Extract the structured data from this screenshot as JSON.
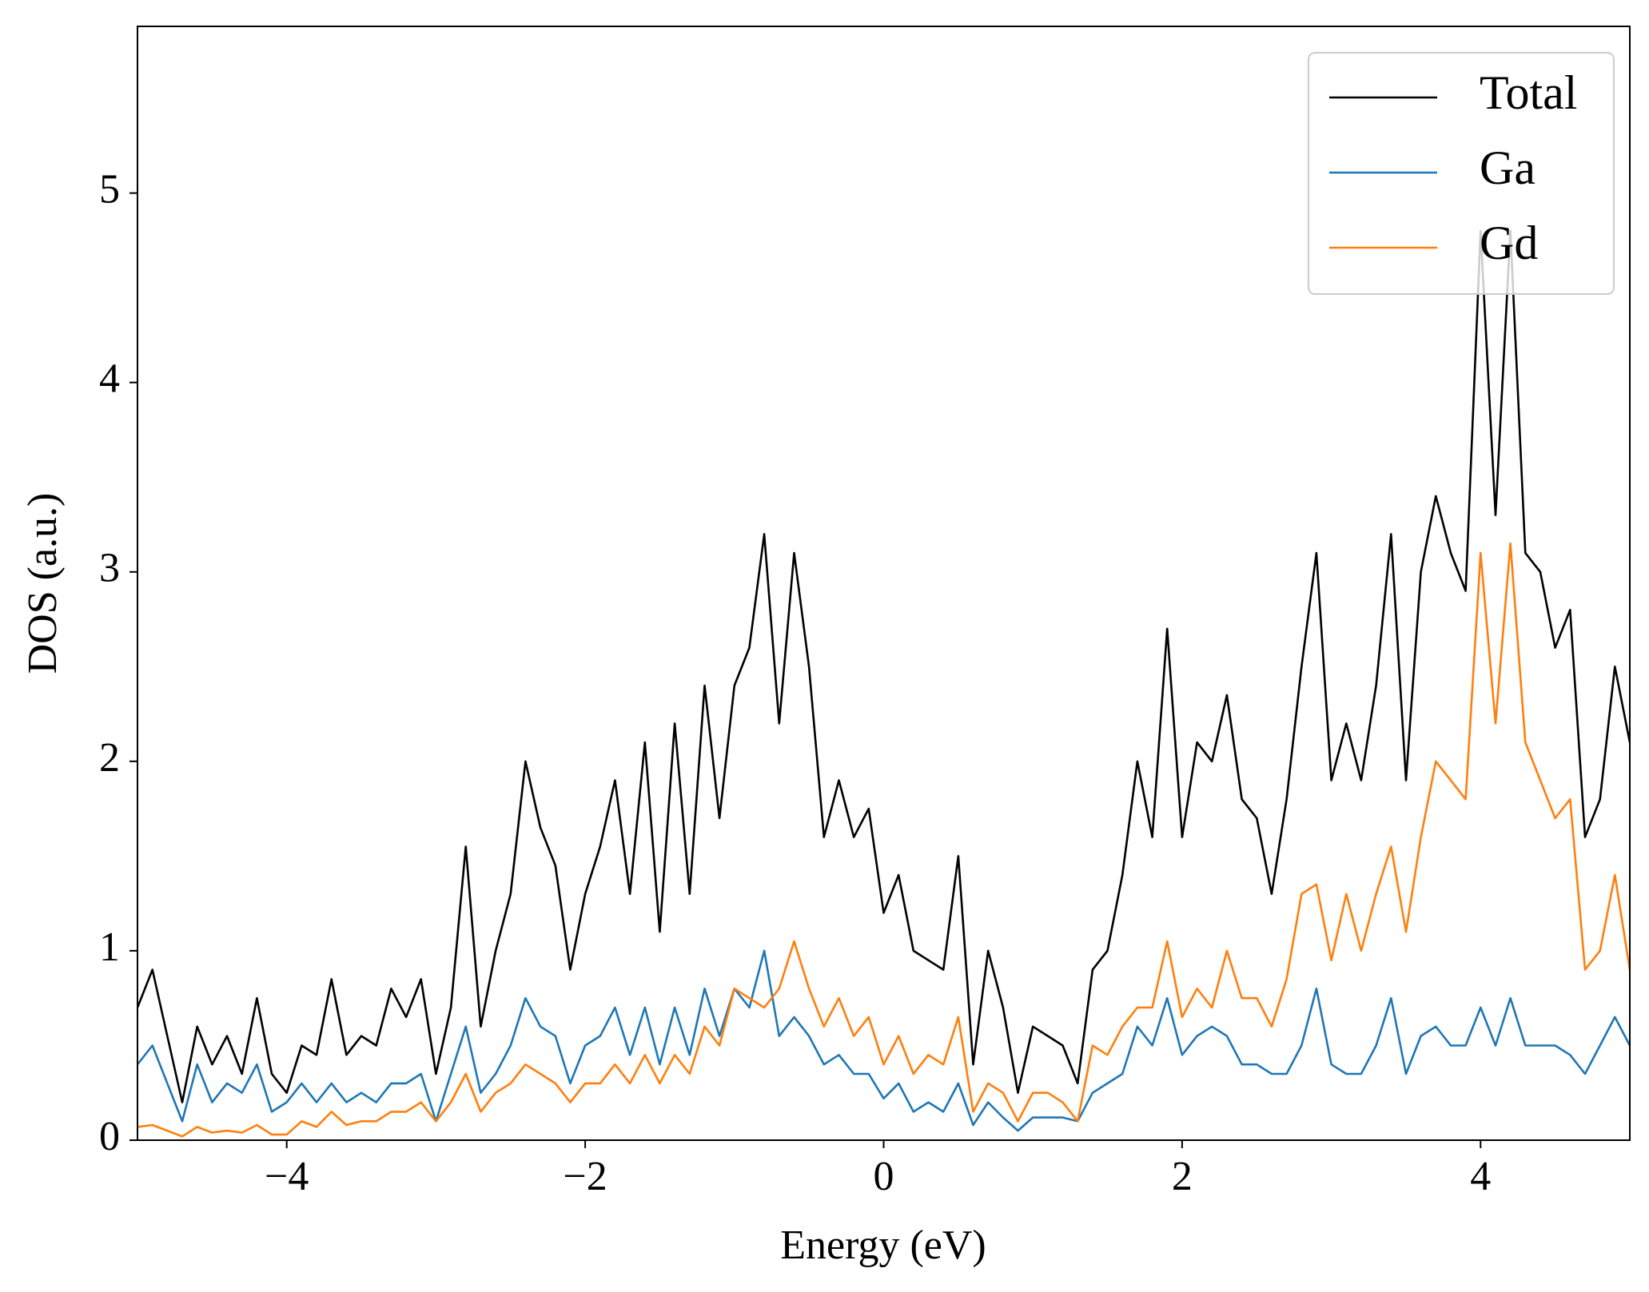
{
  "chart_data": {
    "type": "line",
    "xlabel": "Energy (eV)",
    "ylabel": "DOS (a.u.)",
    "x": [
      -5.0,
      -4.9,
      -4.8,
      -4.7,
      -4.6,
      -4.5,
      -4.4,
      -4.3,
      -4.2,
      -4.1,
      -4.0,
      -3.9,
      -3.8,
      -3.7,
      -3.6,
      -3.5,
      -3.4,
      -3.3,
      -3.2,
      -3.1,
      -3.0,
      -2.9,
      -2.8,
      -2.7,
      -2.6,
      -2.5,
      -2.4,
      -2.3,
      -2.2,
      -2.1,
      -2.0,
      -1.9,
      -1.8,
      -1.7,
      -1.6,
      -1.5,
      -1.4,
      -1.3,
      -1.2,
      -1.1,
      -1.0,
      -0.9,
      -0.8,
      -0.7,
      -0.6,
      -0.5,
      -0.4,
      -0.3,
      -0.2,
      -0.1,
      0.0,
      0.1,
      0.2,
      0.3,
      0.4,
      0.5,
      0.6,
      0.7,
      0.8,
      0.9,
      1.0,
      1.1,
      1.2,
      1.3,
      1.4,
      1.5,
      1.6,
      1.7,
      1.8,
      1.9,
      2.0,
      2.1,
      2.2,
      2.3,
      2.4,
      2.5,
      2.6,
      2.7,
      2.8,
      2.9,
      3.0,
      3.1,
      3.2,
      3.3,
      3.4,
      3.5,
      3.6,
      3.7,
      3.8,
      3.9,
      4.0,
      4.1,
      4.2,
      4.3,
      4.4,
      4.5,
      4.6,
      4.7,
      4.8,
      4.9,
      5.0
    ],
    "series": [
      {
        "name": "Total",
        "color": "#000000",
        "values": [
          0.7,
          0.9,
          0.55,
          0.2,
          0.6,
          0.4,
          0.55,
          0.35,
          0.75,
          0.35,
          0.25,
          0.5,
          0.45,
          0.85,
          0.45,
          0.55,
          0.5,
          0.8,
          0.65,
          0.85,
          0.35,
          0.7,
          1.55,
          0.6,
          1.0,
          1.3,
          2.0,
          1.65,
          1.45,
          0.9,
          1.3,
          1.55,
          1.9,
          1.3,
          2.1,
          1.1,
          2.2,
          1.3,
          2.4,
          1.7,
          2.4,
          2.6,
          3.2,
          2.2,
          3.1,
          2.5,
          1.6,
          1.9,
          1.6,
          1.75,
          1.2,
          1.4,
          1.0,
          0.95,
          0.9,
          1.5,
          0.4,
          1.0,
          0.7,
          0.25,
          0.6,
          0.55,
          0.5,
          0.3,
          0.9,
          1.0,
          1.4,
          2.0,
          1.6,
          2.7,
          1.6,
          2.1,
          2.0,
          2.35,
          1.8,
          1.7,
          1.3,
          1.8,
          2.5,
          3.1,
          1.9,
          2.2,
          1.9,
          2.4,
          3.2,
          1.9,
          3.0,
          3.4,
          3.1,
          2.9,
          4.8,
          3.3,
          4.8,
          3.1,
          3.0,
          2.6,
          2.8,
          1.6,
          1.8,
          2.5,
          2.1
        ]
      },
      {
        "name": "Ga",
        "color": "#1f77b4",
        "values": [
          0.4,
          0.5,
          0.3,
          0.1,
          0.4,
          0.2,
          0.3,
          0.25,
          0.4,
          0.15,
          0.2,
          0.3,
          0.2,
          0.3,
          0.2,
          0.25,
          0.2,
          0.3,
          0.3,
          0.35,
          0.1,
          0.35,
          0.6,
          0.25,
          0.35,
          0.5,
          0.75,
          0.6,
          0.55,
          0.3,
          0.5,
          0.55,
          0.7,
          0.45,
          0.7,
          0.4,
          0.7,
          0.45,
          0.8,
          0.55,
          0.8,
          0.7,
          1.0,
          0.55,
          0.65,
          0.55,
          0.4,
          0.45,
          0.35,
          0.35,
          0.22,
          0.3,
          0.15,
          0.2,
          0.15,
          0.3,
          0.08,
          0.2,
          0.12,
          0.05,
          0.12,
          0.12,
          0.12,
          0.1,
          0.25,
          0.3,
          0.35,
          0.6,
          0.5,
          0.75,
          0.45,
          0.55,
          0.6,
          0.55,
          0.4,
          0.4,
          0.35,
          0.35,
          0.5,
          0.8,
          0.4,
          0.35,
          0.35,
          0.5,
          0.75,
          0.35,
          0.55,
          0.6,
          0.5,
          0.5,
          0.7,
          0.5,
          0.75,
          0.5,
          0.5,
          0.5,
          0.45,
          0.35,
          0.5,
          0.65,
          0.5
        ]
      },
      {
        "name": "Gd",
        "color": "#ff7f0e",
        "values": [
          0.07,
          0.08,
          0.05,
          0.02,
          0.07,
          0.04,
          0.05,
          0.04,
          0.08,
          0.03,
          0.03,
          0.1,
          0.07,
          0.15,
          0.08,
          0.1,
          0.1,
          0.15,
          0.15,
          0.2,
          0.1,
          0.2,
          0.35,
          0.15,
          0.25,
          0.3,
          0.4,
          0.35,
          0.3,
          0.2,
          0.3,
          0.3,
          0.4,
          0.3,
          0.45,
          0.3,
          0.45,
          0.35,
          0.6,
          0.5,
          0.8,
          0.75,
          0.7,
          0.8,
          1.05,
          0.8,
          0.6,
          0.75,
          0.55,
          0.65,
          0.4,
          0.55,
          0.35,
          0.45,
          0.4,
          0.65,
          0.15,
          0.3,
          0.25,
          0.1,
          0.25,
          0.25,
          0.2,
          0.1,
          0.5,
          0.45,
          0.6,
          0.7,
          0.7,
          1.05,
          0.65,
          0.8,
          0.7,
          1.0,
          0.75,
          0.75,
          0.6,
          0.85,
          1.3,
          1.35,
          0.95,
          1.3,
          1.0,
          1.3,
          1.55,
          1.1,
          1.6,
          2.0,
          1.9,
          1.8,
          3.1,
          2.2,
          3.15,
          2.1,
          1.9,
          1.7,
          1.8,
          0.9,
          1.0,
          1.4,
          0.9
        ]
      }
    ],
    "xlim": [
      -5,
      5
    ],
    "ylim": [
      0,
      5.88
    ],
    "xticks": [
      {
        "value": -4,
        "label": "−4"
      },
      {
        "value": -2,
        "label": "−2"
      },
      0,
      2,
      4
    ],
    "yticks": [
      0,
      1,
      2,
      3,
      4,
      5
    ],
    "grid": false,
    "legend": "upper right"
  }
}
